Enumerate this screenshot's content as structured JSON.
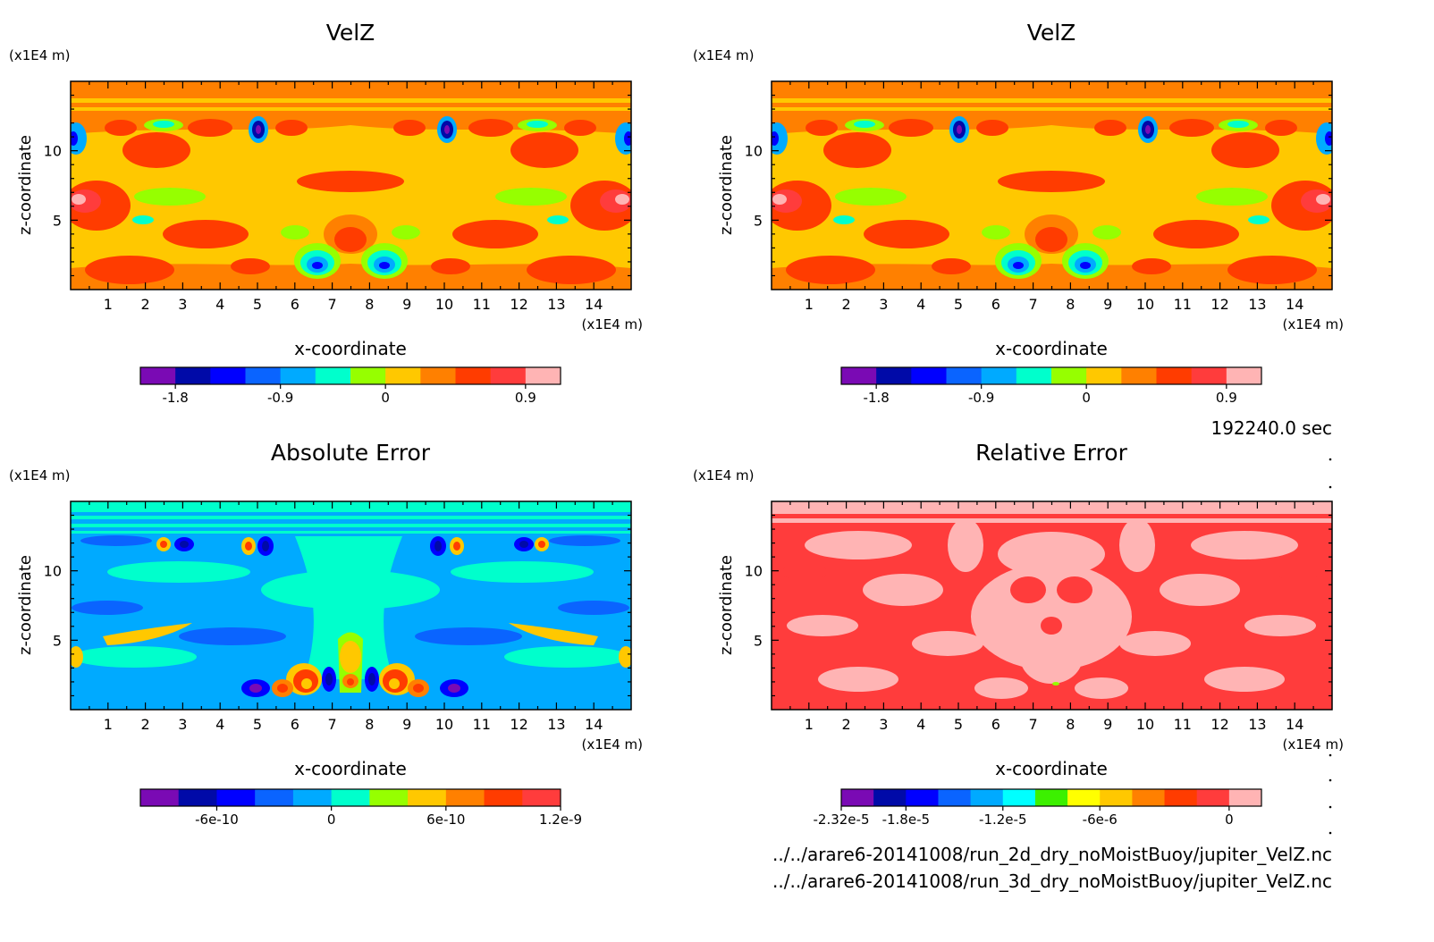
{
  "time_label": "192240.0 sec",
  "file_paths": [
    "../../arare6-20141008/run_2d_dry_noMoistBuoy/jupiter_VelZ.nc",
    "../../arare6-20141008/run_3d_dry_noMoistBuoy/jupiter_VelZ.nc"
  ],
  "chart_data": [
    {
      "type": "heatmap",
      "title": "VelZ",
      "xlabel": "x-coordinate",
      "ylabel": "z-coordinate",
      "x_unit": "(x1E4 m)",
      "y_unit": "(x1E4 m)",
      "xlim": [
        0,
        15
      ],
      "ylim": [
        0,
        15
      ],
      "xticks": [
        1,
        2,
        3,
        4,
        5,
        6,
        7,
        8,
        9,
        10,
        11,
        12,
        13,
        14
      ],
      "yticks": [
        5,
        10
      ],
      "colorbar": {
        "colors": [
          "#7a0ab4",
          "#000aa8",
          "#0000ff",
          "#0a64ff",
          "#00aaff",
          "#00ffcc",
          "#96ff00",
          "#ffc800",
          "#ff8000",
          "#ff3c00",
          "#ff3c3c",
          "#ffb4b4"
        ],
        "tick_labels": [
          "-1.8",
          "-0.9",
          "0",
          "0.9"
        ],
        "tick_boundaries": [
          1,
          4,
          7,
          11
        ]
      }
    },
    {
      "type": "heatmap",
      "title": "VelZ",
      "xlabel": "x-coordinate",
      "ylabel": "z-coordinate",
      "x_unit": "(x1E4 m)",
      "y_unit": "(x1E4 m)",
      "xlim": [
        0,
        15
      ],
      "ylim": [
        0,
        15
      ],
      "xticks": [
        1,
        2,
        3,
        4,
        5,
        6,
        7,
        8,
        9,
        10,
        11,
        12,
        13,
        14
      ],
      "yticks": [
        5,
        10
      ],
      "colorbar": {
        "colors": [
          "#7a0ab4",
          "#000aa8",
          "#0000ff",
          "#0a64ff",
          "#00aaff",
          "#00ffcc",
          "#96ff00",
          "#ffc800",
          "#ff8000",
          "#ff3c00",
          "#ff3c3c",
          "#ffb4b4"
        ],
        "tick_labels": [
          "-1.8",
          "-0.9",
          "0",
          "0.9"
        ],
        "tick_boundaries": [
          1,
          4,
          7,
          11
        ]
      }
    },
    {
      "type": "heatmap",
      "title": "Absolute Error",
      "xlabel": "x-coordinate",
      "ylabel": "z-coordinate",
      "x_unit": "(x1E4 m)",
      "y_unit": "(x1E4 m)",
      "xlim": [
        0,
        15
      ],
      "ylim": [
        0,
        15
      ],
      "xticks": [
        1,
        2,
        3,
        4,
        5,
        6,
        7,
        8,
        9,
        10,
        11,
        12,
        13,
        14
      ],
      "yticks": [
        5,
        10
      ],
      "colorbar": {
        "colors": [
          "#7a0ab4",
          "#000aa8",
          "#0000ff",
          "#0a64ff",
          "#00aaff",
          "#00ffcc",
          "#96ff00",
          "#ffc800",
          "#ff8000",
          "#ff3c00",
          "#ff3c3c"
        ],
        "tick_labels": [
          "-6e-10",
          "0",
          "6e-10",
          "1.2e-9"
        ],
        "tick_boundaries": [
          2,
          5,
          8,
          11
        ]
      }
    },
    {
      "type": "heatmap",
      "title": "Relative Error",
      "xlabel": "x-coordinate",
      "ylabel": "z-coordinate",
      "x_unit": "(x1E4 m)",
      "y_unit": "(x1E4 m)",
      "xlim": [
        0,
        15
      ],
      "ylim": [
        0,
        15
      ],
      "xticks": [
        1,
        2,
        3,
        4,
        5,
        6,
        7,
        8,
        9,
        10,
        11,
        12,
        13,
        14
      ],
      "yticks": [
        5,
        10
      ],
      "colorbar": {
        "colors": [
          "#7a0ab4",
          "#000aa8",
          "#0000ff",
          "#0a64ff",
          "#00aaff",
          "#00ffff",
          "#3cf000",
          "#ffff00",
          "#ffc800",
          "#ff8000",
          "#ff3c00",
          "#ff3c3c",
          "#ffb4b4"
        ],
        "tick_labels": [
          "-2.32e-5",
          "-1.8e-5",
          "-1.2e-5",
          "-6e-6",
          "0"
        ],
        "tick_boundaries": [
          0,
          2,
          5,
          8,
          12
        ]
      }
    }
  ]
}
